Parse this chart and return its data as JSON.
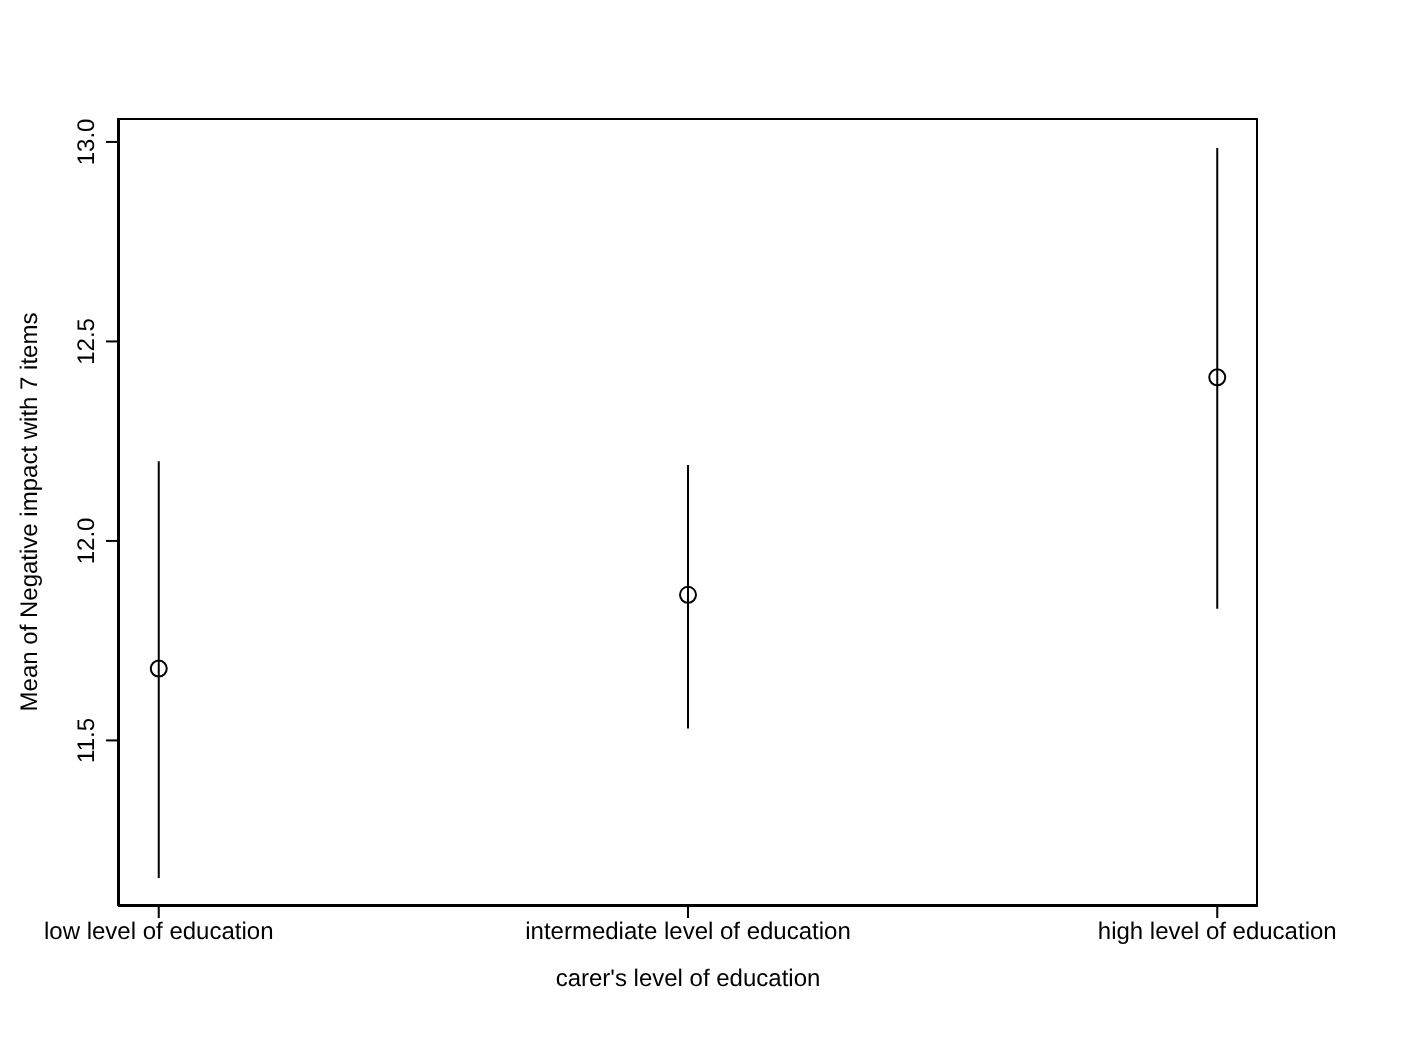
{
  "chart_data": {
    "type": "scatter",
    "xlabel": "carer's level of education",
    "ylabel": "Mean of Negative impact with 7 items",
    "categories": [
      "low level of education",
      "intermediate level of education",
      "high level of education"
    ],
    "series": [
      {
        "color": "#000000",
        "values": [
          11.68,
          11.865,
          12.41
        ],
        "errors": [
          [
            11.155,
            12.2
          ],
          [
            11.53,
            12.19
          ],
          [
            11.83,
            12.985
          ]
        ]
      }
    ],
    "ylim": [
      11.085,
      13.06
    ],
    "yticks": [
      11.5,
      {
        "value": 12,
        "label": "12.0"
      },
      12.5,
      {
        "value": 13,
        "label": "13.0"
      }
    ],
    "marker": "circle",
    "grid": false,
    "legend": false
  }
}
